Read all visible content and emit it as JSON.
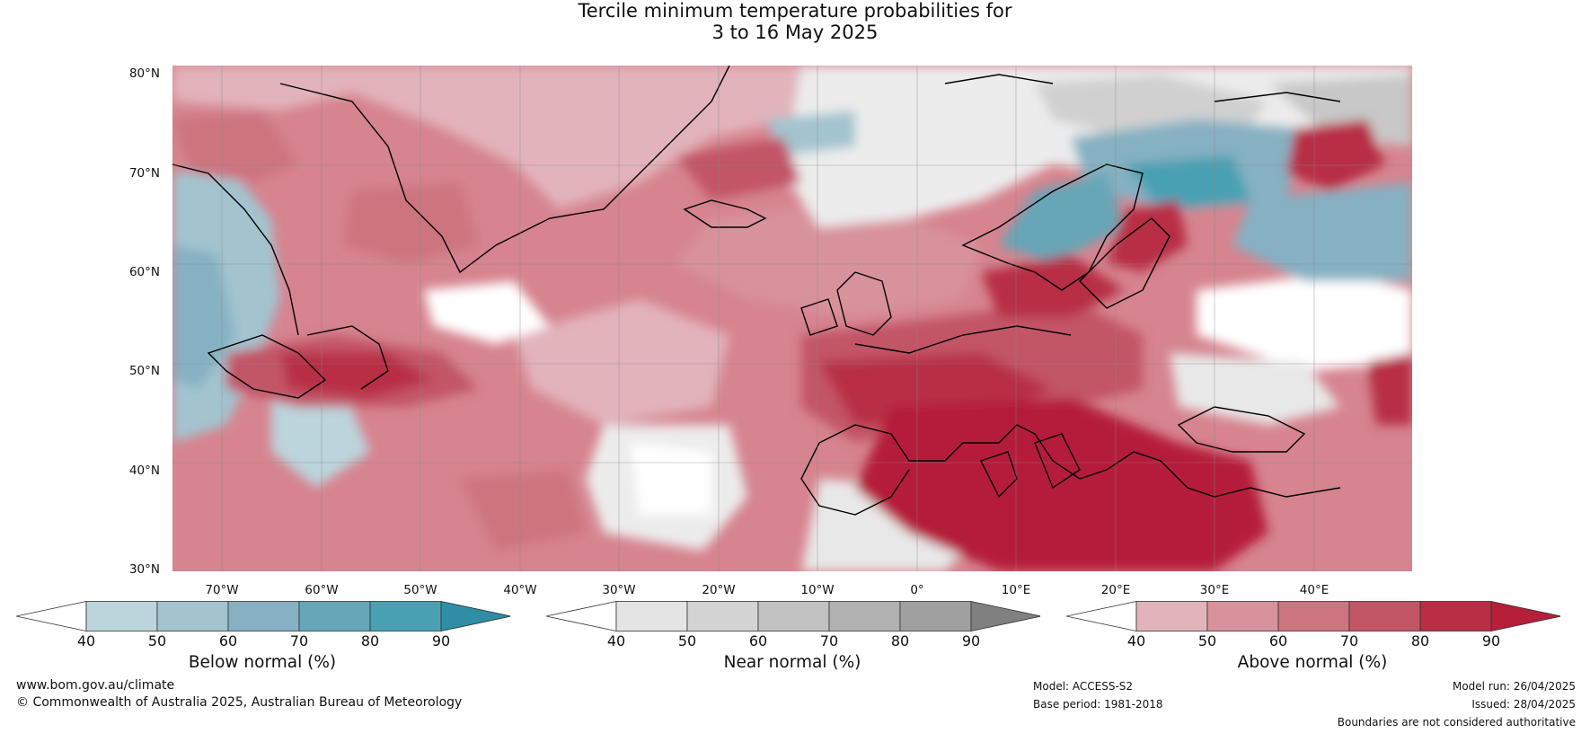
{
  "title": {
    "line1": "Tercile minimum temperature probabilities for",
    "line2": "3 to 16 May 2025"
  },
  "map": {
    "lat_labels": [
      "80°N",
      "70°N",
      "60°N",
      "50°N",
      "40°N",
      "30°N"
    ],
    "lon_labels": [
      "70°W",
      "60°W",
      "50°W",
      "40°W",
      "30°W",
      "20°W",
      "10°W",
      "0°",
      "10°E",
      "20°E",
      "30°E",
      "40°E"
    ]
  },
  "colorbars": [
    {
      "label": "Below normal (%)",
      "ticks": [
        "40",
        "50",
        "60",
        "70",
        "80",
        "90"
      ],
      "colors": [
        "#ffffff",
        "#bcd4dc",
        "#a3c4cf",
        "#85b1c2",
        "#66a6b7",
        "#4aa0b3",
        "#2e8ea5"
      ]
    },
    {
      "label": "Near normal (%)",
      "ticks": [
        "40",
        "50",
        "60",
        "70",
        "80",
        "90"
      ],
      "colors": [
        "#ffffff",
        "#e4e4e4",
        "#d3d3d3",
        "#c2c2c2",
        "#b1b1b1",
        "#a0a0a0",
        "#808080"
      ]
    },
    {
      "label": "Above normal (%)",
      "ticks": [
        "40",
        "50",
        "60",
        "70",
        "80",
        "90"
      ],
      "colors": [
        "#ffffff",
        "#e2b3bb",
        "#d8929c",
        "#cc747f",
        "#c25566",
        "#b82e45",
        "#b51f3a"
      ]
    }
  ],
  "footer": {
    "url": "www.bom.gov.au/climate",
    "copyright": "© Commonwealth of Australia 2025, Australian Bureau of Meteorology",
    "model": "Model: ACCESS-S2",
    "base_period": "Base period: 1981-2018",
    "model_run": "Model run: 26/04/2025",
    "issued": "Issued: 28/04/2025",
    "disclaimer": "Boundaries are not considered authoritative"
  }
}
